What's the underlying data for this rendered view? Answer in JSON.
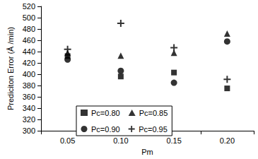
{
  "chart_data": {
    "type": "scatter",
    "x_label": "Pm",
    "y_label": "Prediciton Error (Å /min)",
    "categories": [
      "0.05",
      "0.10",
      "0.15",
      "0.20"
    ],
    "series": [
      {
        "name": "Pc=0.80",
        "color": "#000000",
        "marker": "square",
        "values": [
          432,
          396,
          403,
          375
        ]
      },
      {
        "name": "Pc=0.85",
        "color": "#000000",
        "marker": "triangle",
        "values": [
          438,
          433,
          438,
          472
        ]
      },
      {
        "name": "Pc=0.90",
        "color": "#000000",
        "marker": "circle",
        "values": [
          426,
          406,
          385,
          458
        ]
      },
      {
        "name": "Pc=0.95",
        "color": "#000000",
        "marker": "plus",
        "values": [
          444,
          490,
          447,
          391
        ]
      }
    ],
    "ylim": [
      300,
      520
    ],
    "yticks": [
      300,
      320,
      340,
      360,
      380,
      400,
      420,
      440,
      460,
      480,
      500,
      520
    ],
    "grid": false,
    "legend": "bottom"
  }
}
